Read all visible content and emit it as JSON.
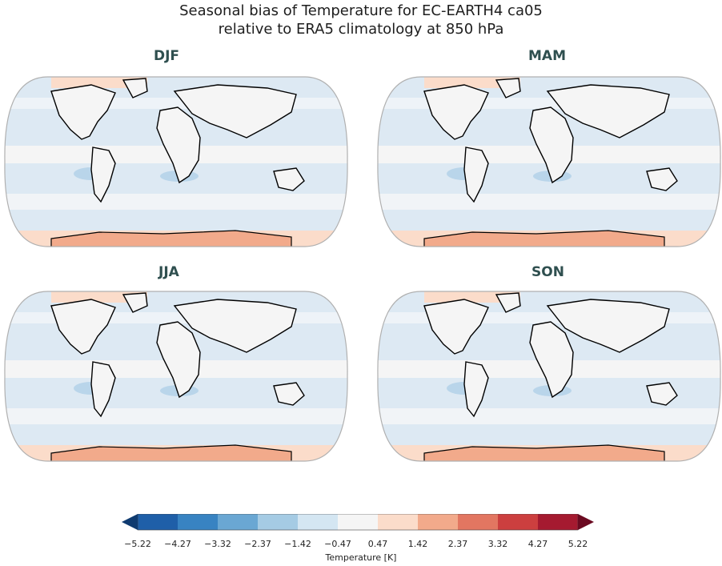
{
  "title": {
    "line1": "Seasonal bias of Temperature for EC-EARTH4 ca05",
    "line2": "relative to ERA5 climatology at 850 hPa"
  },
  "panels": [
    {
      "label": "DJF"
    },
    {
      "label": "MAM"
    },
    {
      "label": "JJA"
    },
    {
      "label": "SON"
    }
  ],
  "colorbar": {
    "label": "Temperature [K]",
    "ticks": [
      "−5.22",
      "−4.27",
      "−3.32",
      "−2.37",
      "−1.42",
      "−0.47",
      "0.47",
      "1.42",
      "2.37",
      "3.32",
      "4.27",
      "5.22"
    ],
    "colors": [
      "#1f5fa8",
      "#3883c2",
      "#6aa7d3",
      "#a5cbe4",
      "#d4e6f2",
      "#f5f5f5",
      "#fbdcca",
      "#f2aa8b",
      "#e27661",
      "#cc3f3f",
      "#a51a30",
      "#6b0a21"
    ],
    "under_color": "#0f3b70",
    "over_color": "#6b0a21"
  },
  "map_colors": {
    "ocean_base": "#dde9f3",
    "neutral": "#f5f5f5",
    "cool": "#b9d5ea",
    "warm": "#fbdcca",
    "coast": "#000000",
    "frame": "#b0b0b0"
  }
}
